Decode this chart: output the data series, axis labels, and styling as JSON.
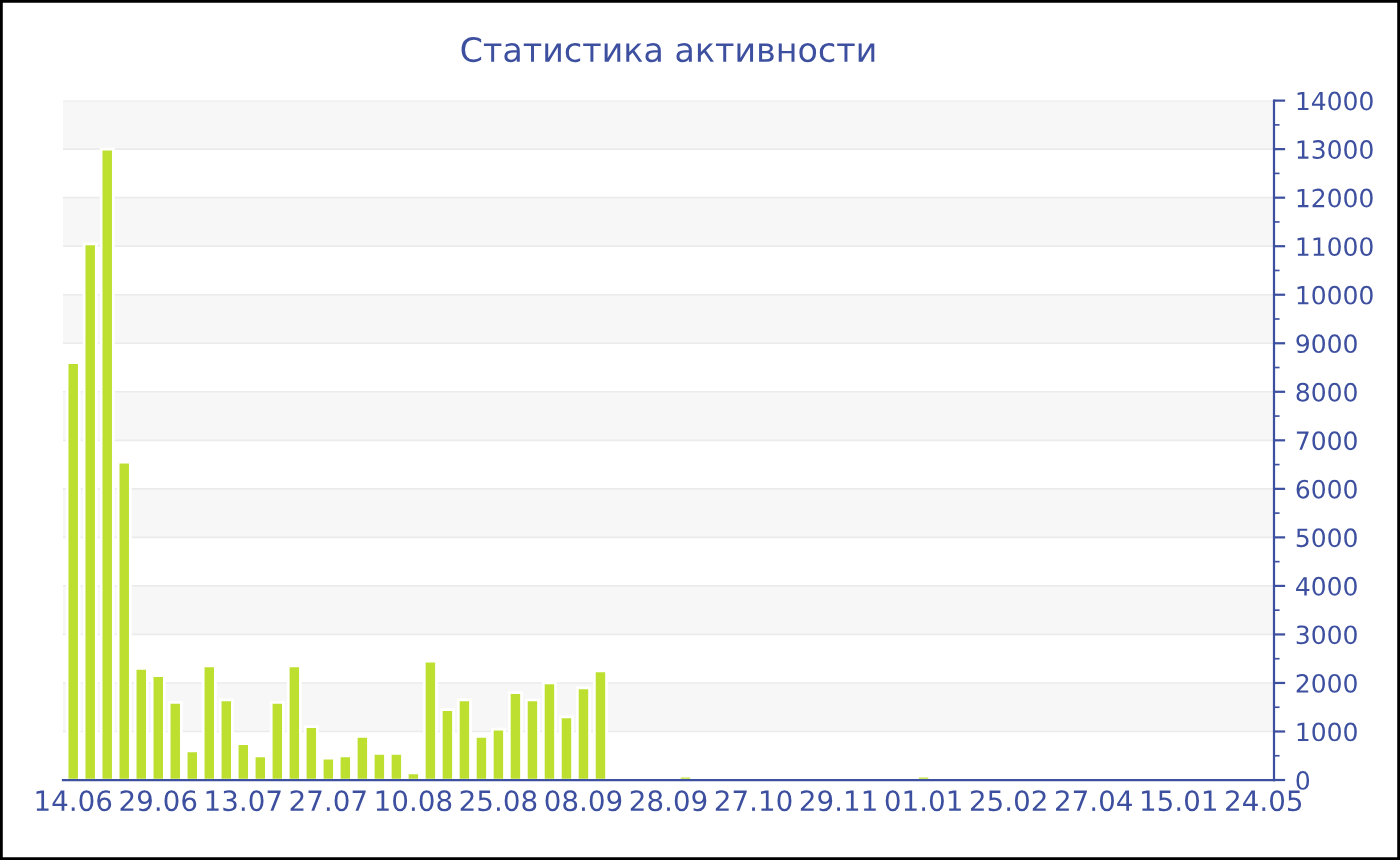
{
  "chart_data": {
    "type": "bar",
    "title": "Статистика активности",
    "categories": [
      "14.06",
      null,
      null,
      null,
      null,
      "29.06",
      null,
      null,
      null,
      null,
      "13.07",
      null,
      null,
      null,
      null,
      "27.07",
      null,
      null,
      null,
      null,
      "10.08",
      null,
      null,
      null,
      null,
      "25.08",
      null,
      null,
      null,
      null,
      "08.09",
      null,
      null,
      null,
      null,
      "28.09",
      null,
      null,
      null,
      null,
      "27.10",
      null,
      null,
      null,
      null,
      "29.11",
      null,
      null,
      null,
      null,
      "01.01",
      null,
      null,
      null,
      null,
      "25.02",
      null,
      null,
      null,
      null,
      "27.04",
      null,
      null,
      null,
      null,
      "15.01",
      null,
      null,
      null,
      null,
      "24.05"
    ],
    "series": [
      {
        "color": "#bde030",
        "values": [
          8600,
          11050,
          13000,
          6550,
          2300,
          2150,
          1600,
          600,
          2350,
          1650,
          750,
          500,
          1600,
          2350,
          1100,
          450,
          500,
          900,
          550,
          550,
          150,
          2450,
          1450,
          1650,
          900,
          1050,
          1800,
          1650,
          2000,
          1300,
          1900,
          2250,
          40,
          40,
          40,
          40,
          80,
          40,
          40,
          40,
          40,
          40,
          40,
          40,
          40,
          40,
          40,
          40,
          40,
          40,
          80,
          40,
          40,
          40,
          40,
          40,
          40,
          40,
          40,
          40,
          40,
          40,
          40,
          40,
          40,
          40,
          40,
          40,
          40,
          40,
          40
        ]
      }
    ],
    "ylim": [
      0,
      14000
    ],
    "yticks": [
      0,
      1000,
      2000,
      3000,
      4000,
      5000,
      6000,
      7000,
      8000,
      9000,
      10000,
      11000,
      12000,
      13000,
      14000
    ],
    "grid": "y"
  }
}
